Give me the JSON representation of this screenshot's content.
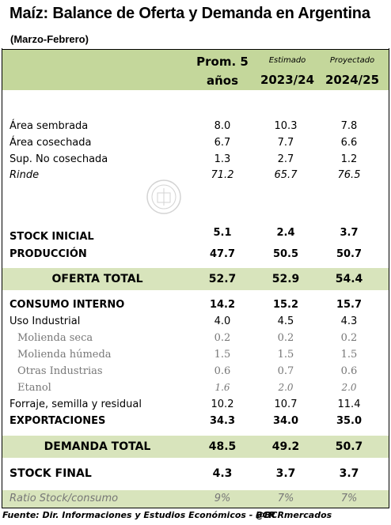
{
  "title": "Maíz: Balance de Oferta y Demanda en Argentina",
  "subtitle": "(Marzo-Febrero)",
  "header": {
    "col1_line1": "Prom. 5",
    "col1_line2": "años",
    "col2_tag": "Estimado",
    "col2_year": "2023/24",
    "col3_tag": "Proyectado",
    "col3_year": "2024/25"
  },
  "rows": {
    "area_sembrada": {
      "label": "Área sembrada",
      "v1": "8.0",
      "v2": "10.3",
      "v3": "7.8"
    },
    "area_cosechada": {
      "label": "Área cosechada",
      "v1": "6.7",
      "v2": "7.7",
      "v3": "6.6"
    },
    "sup_no_cosechada": {
      "label": "Sup. No cosechada",
      "v1": "1.3",
      "v2": "2.7",
      "v3": "1.2"
    },
    "rinde": {
      "label": "Rinde",
      "v1": "71.2",
      "v2": "65.7",
      "v3": "76.5"
    },
    "stock_inicial": {
      "label": "STOCK INICIAL",
      "v1": "5.1",
      "v2": "2.4",
      "v3": "3.7"
    },
    "produccion": {
      "label": "PRODUCCIÓN",
      "v1": "47.7",
      "v2": "50.5",
      "v3": "50.7"
    },
    "oferta_total": {
      "label": "OFERTA TOTAL",
      "v1": "52.7",
      "v2": "52.9",
      "v3": "54.4"
    },
    "consumo_interno": {
      "label": "CONSUMO INTERNO",
      "v1": "14.2",
      "v2": "15.2",
      "v3": "15.7"
    },
    "uso_industrial": {
      "label": "Uso Industrial",
      "v1": "4.0",
      "v2": "4.5",
      "v3": "4.3"
    },
    "molienda_seca": {
      "label": "Molienda seca",
      "v1": "0.2",
      "v2": "0.2",
      "v3": "0.2"
    },
    "molienda_humeda": {
      "label": "Molienda húmeda",
      "v1": "1.5",
      "v2": "1.5",
      "v3": "1.5"
    },
    "otras_industrias": {
      "label": "Otras Industrias",
      "v1": "0.6",
      "v2": "0.7",
      "v3": "0.6"
    },
    "etanol": {
      "label": "Etanol",
      "v1": "1.6",
      "v2": "2.0",
      "v3": "2.0"
    },
    "forraje": {
      "label": "Forraje, semilla y residual",
      "v1": "10.2",
      "v2": "10.7",
      "v3": "11.4"
    },
    "exportaciones": {
      "label": "EXPORTACIONES",
      "v1": "34.3",
      "v2": "34.0",
      "v3": "35.0"
    },
    "demanda_total": {
      "label": "DEMANDA TOTAL",
      "v1": "48.5",
      "v2": "49.2",
      "v3": "50.7"
    },
    "stock_final": {
      "label": "STOCK FINAL",
      "v1": "4.3",
      "v2": "3.7",
      "v3": "3.7"
    },
    "ratio": {
      "label": "Ratio Stock/consumo",
      "v1": "9%",
      "v2": "7%",
      "v3": "7%"
    }
  },
  "footer": {
    "source": "Fuente: Dir. Informaciones y Estudios Económicos - BCR",
    "handle": "@BCRmercados"
  },
  "colors": {
    "header_band": "#c4d79b",
    "total_band": "#d8e4bc",
    "sub_text": "#777777"
  },
  "watermark": {
    "icon": "bcr-seal-watermark"
  }
}
